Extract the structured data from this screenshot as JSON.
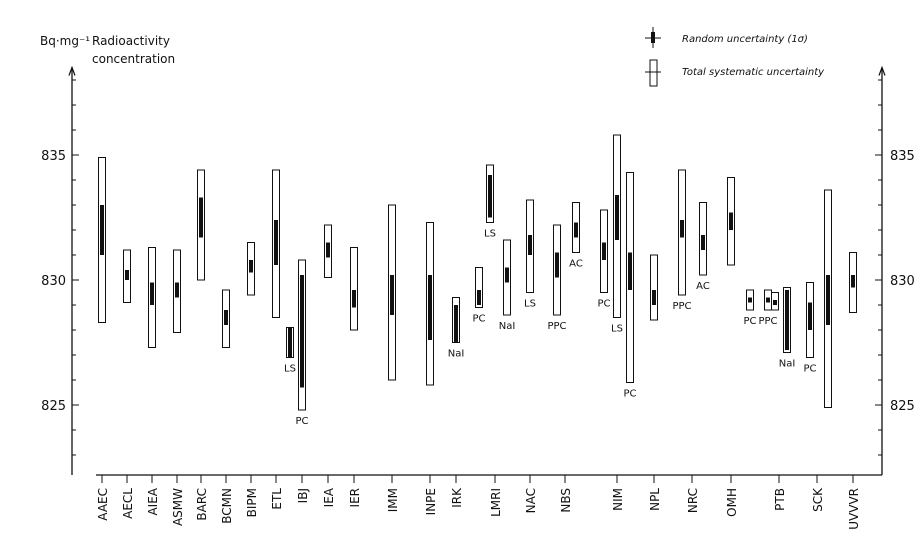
{
  "chart_data": {
    "type": "error-bar",
    "unit": "Bq·mg⁻¹",
    "title_lines": [
      "Radioactivity",
      "concentration"
    ],
    "ylim": [
      822.2,
      838.5
    ],
    "yticks": [
      825,
      830,
      835
    ],
    "grid": false,
    "legend": {
      "position": "top-right",
      "random": "Random uncertainty (1σ)",
      "systematic": "Total systematic uncertainty"
    },
    "categories": [
      "AAEC",
      "AECL",
      "AIEA",
      "ASMW",
      "BARC",
      "BCMN",
      "BIPM",
      "ETL",
      "IBJ",
      "IEA",
      "IER",
      "IMM",
      "INPE",
      "IRK",
      "LMRI",
      "NAC",
      "NBS",
      "NIM",
      "NPL",
      "NRC",
      "OMH",
      "PTB",
      "SCK",
      "UVVVR"
    ],
    "points": [
      {
        "lab": "AAEC",
        "method": "",
        "value": 832.0,
        "random": [
          831.0,
          833.0
        ],
        "total": [
          828.3,
          834.9
        ]
      },
      {
        "lab": "AECL",
        "method": "",
        "value": 830.2,
        "random": [
          830.0,
          830.4
        ],
        "total": [
          829.1,
          831.2
        ]
      },
      {
        "lab": "AIEA",
        "method": "",
        "value": 829.4,
        "random": [
          829.0,
          829.9
        ],
        "total": [
          827.3,
          831.3
        ]
      },
      {
        "lab": "ASMW",
        "method": "",
        "value": 829.6,
        "random": [
          829.3,
          829.9
        ],
        "total": [
          827.9,
          831.2
        ]
      },
      {
        "lab": "BARC",
        "method": "",
        "value": 832.5,
        "random": [
          831.7,
          833.3
        ],
        "total": [
          830.0,
          834.4
        ]
      },
      {
        "lab": "BCMN",
        "method": "",
        "value": 828.5,
        "random": [
          828.2,
          828.8
        ],
        "total": [
          827.3,
          829.6
        ]
      },
      {
        "lab": "BIPM",
        "method": "",
        "value": 830.5,
        "random": [
          830.3,
          830.8
        ],
        "total": [
          829.4,
          831.5
        ]
      },
      {
        "lab": "ETL",
        "method": "",
        "value": 831.5,
        "random": [
          830.6,
          832.4
        ],
        "total": [
          828.5,
          834.4
        ]
      },
      {
        "lab": "IBJ",
        "method": "LS",
        "value": 827.5,
        "random": [
          826.9,
          828.1
        ],
        "total": [
          826.9,
          828.1
        ]
      },
      {
        "lab": "IBJ",
        "method": "PC",
        "value": 828.0,
        "random": [
          825.7,
          830.2
        ],
        "total": [
          824.8,
          830.8
        ]
      },
      {
        "lab": "IEA",
        "method": "",
        "value": 831.2,
        "random": [
          830.9,
          831.5
        ],
        "total": [
          830.1,
          832.2
        ]
      },
      {
        "lab": "IER",
        "method": "",
        "value": 829.2,
        "random": [
          828.9,
          829.6
        ],
        "total": [
          828.0,
          831.3
        ]
      },
      {
        "lab": "IMM",
        "method": "",
        "value": 829.5,
        "random": [
          828.6,
          830.2
        ],
        "total": [
          826.0,
          833.0
        ]
      },
      {
        "lab": "INPE",
        "method": "",
        "value": 829.0,
        "random": [
          827.6,
          830.2
        ],
        "total": [
          825.8,
          832.3
        ]
      },
      {
        "lab": "IRK",
        "method": "NaI",
        "value": 828.3,
        "random": [
          827.5,
          829.0
        ],
        "total": [
          827.5,
          829.3
        ]
      },
      {
        "lab": "LMRI",
        "method": "LS",
        "value": 833.3,
        "random": [
          832.5,
          834.2
        ],
        "total": [
          832.3,
          834.6
        ]
      },
      {
        "lab": "LMRI",
        "method": "PC",
        "value": 829.3,
        "random": [
          829.0,
          829.6
        ],
        "total": [
          828.9,
          830.5
        ]
      },
      {
        "lab": "LMRI",
        "method": "NaI",
        "value": 830.2,
        "random": [
          829.9,
          830.5
        ],
        "total": [
          828.6,
          831.6
        ]
      },
      {
        "lab": "NAC",
        "method": "LS",
        "value": 831.4,
        "random": [
          831.0,
          831.8
        ],
        "total": [
          829.5,
          833.2
        ]
      },
      {
        "lab": "NBS",
        "method": "PPC",
        "value": 830.6,
        "random": [
          830.1,
          831.1
        ],
        "total": [
          828.6,
          832.2
        ]
      },
      {
        "lab": "NBS",
        "method": "AC",
        "value": 832.0,
        "random": [
          831.7,
          832.3
        ],
        "total": [
          831.1,
          833.1
        ]
      },
      {
        "lab": "NIM",
        "method": "PC",
        "value": 831.2,
        "random": [
          830.8,
          831.5
        ],
        "total": [
          829.5,
          832.8
        ]
      },
      {
        "lab": "NIM",
        "method": "LS",
        "value": 832.5,
        "random": [
          831.6,
          833.4
        ],
        "total": [
          828.5,
          835.8
        ]
      },
      {
        "lab": "NIM",
        "method": "PC",
        "value": 830.3,
        "random": [
          829.6,
          831.1
        ],
        "total": [
          825.9,
          834.3
        ]
      },
      {
        "lab": "NPL",
        "method": "",
        "value": 829.3,
        "random": [
          829.0,
          829.6
        ],
        "total": [
          828.4,
          831.0
        ]
      },
      {
        "lab": "NRC",
        "method": "PPC",
        "value": 832.0,
        "random": [
          831.7,
          832.4
        ],
        "total": [
          829.4,
          834.4
        ]
      },
      {
        "lab": "NRC",
        "method": "AC",
        "value": 831.5,
        "random": [
          831.2,
          831.8
        ],
        "total": [
          830.2,
          833.1
        ]
      },
      {
        "lab": "OMH",
        "method": "",
        "value": 832.4,
        "random": [
          832.0,
          832.7
        ],
        "total": [
          830.6,
          834.1
        ]
      },
      {
        "lab": "PTB",
        "method": "PC",
        "value": 829.2,
        "random": [
          829.1,
          829.3
        ],
        "total": [
          828.8,
          829.6
        ]
      },
      {
        "lab": "PTB",
        "method": "PPC",
        "value": 829.2,
        "random": [
          829.1,
          829.3
        ],
        "total": [
          828.8,
          829.6
        ]
      },
      {
        "lab": "PTB",
        "method": "",
        "value": 829.1,
        "random": [
          829.0,
          829.2
        ],
        "total": [
          828.8,
          829.5
        ]
      },
      {
        "lab": "PTB",
        "method": "NaI",
        "value": 828.3,
        "random": [
          827.2,
          829.6
        ],
        "total": [
          827.1,
          829.7
        ]
      },
      {
        "lab": "SCK",
        "method": "PC",
        "value": 828.6,
        "random": [
          828.0,
          829.1
        ],
        "total": [
          826.9,
          829.9
        ]
      },
      {
        "lab": "SCK",
        "method": "",
        "value": 829.2,
        "random": [
          828.2,
          830.2
        ],
        "total": [
          824.9,
          833.6
        ]
      },
      {
        "lab": "UVVVR",
        "method": "",
        "value": 829.9,
        "random": [
          829.7,
          830.2
        ],
        "total": [
          828.7,
          831.1
        ]
      }
    ]
  }
}
